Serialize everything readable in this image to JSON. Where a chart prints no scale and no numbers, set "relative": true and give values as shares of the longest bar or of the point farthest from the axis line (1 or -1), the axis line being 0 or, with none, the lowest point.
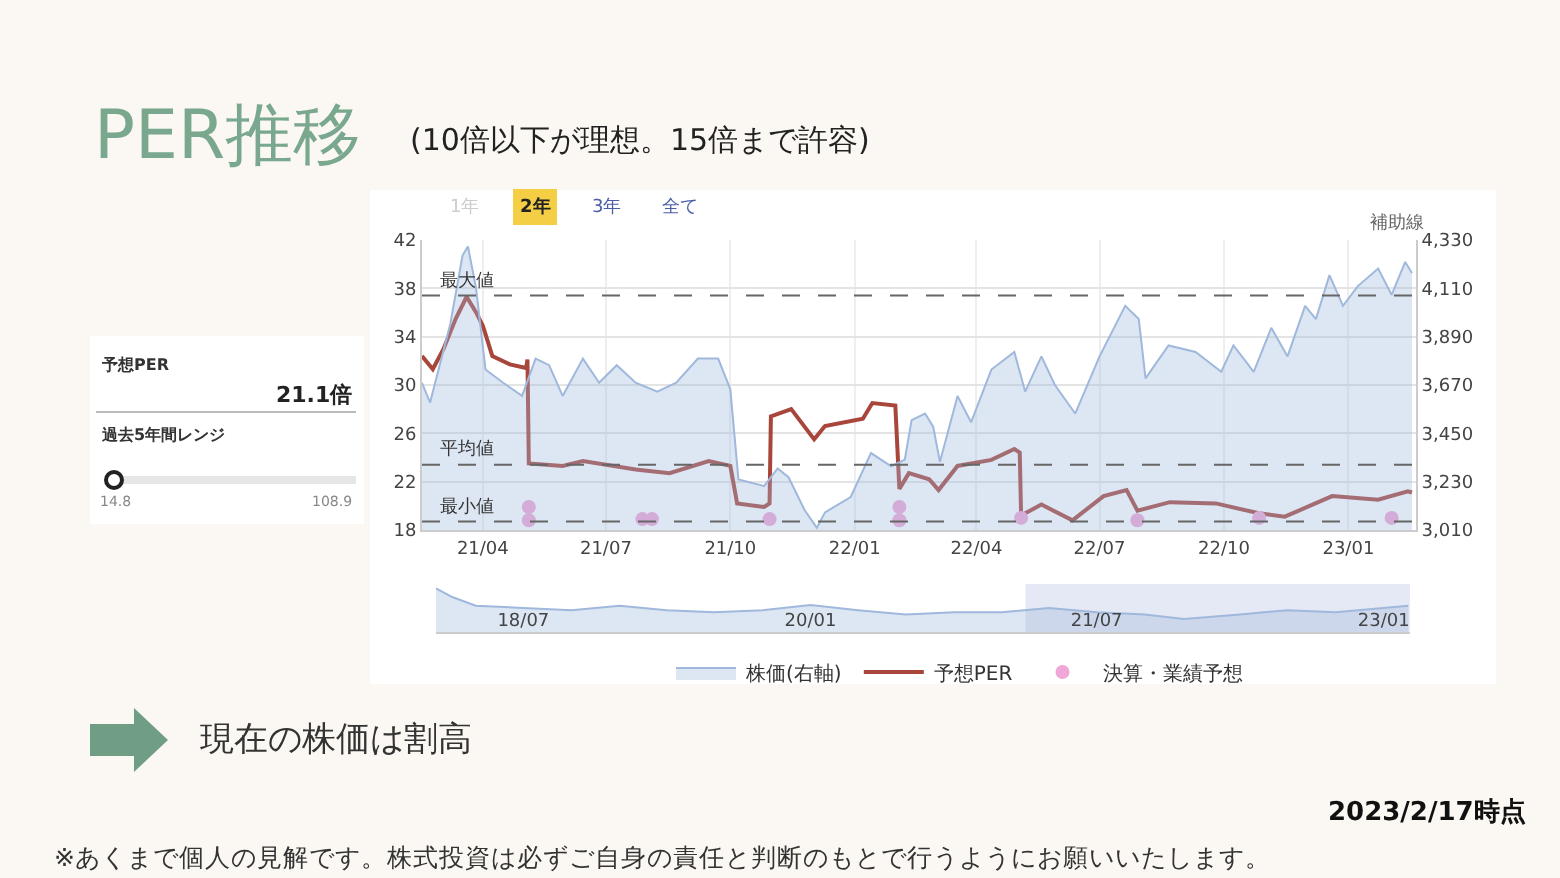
{
  "chart_data": [
    {
      "type": "line",
      "title": "PER推移",
      "subtitle": "(10倍以下が理想。15倍まで許容)",
      "series": [
        {
          "name": "株価(右軸)",
          "type": "area",
          "axis": "y2",
          "color": "#9fb8dc",
          "x": [
            "2021-02-15",
            "2021-02-21",
            "2021-02-26",
            "2021-03-08",
            "2021-03-17",
            "2021-03-21",
            "2021-03-27",
            "2021-04-03",
            "2021-04-16",
            "2021-04-30",
            "2021-05-10",
            "2021-05-20",
            "2021-05-30",
            "2021-06-14",
            "2021-06-26",
            "2021-07-09",
            "2021-07-23",
            "2021-08-08",
            "2021-08-22",
            "2021-09-07",
            "2021-09-22",
            "2021-10-01",
            "2021-10-07",
            "2021-10-26",
            "2021-11-05",
            "2021-11-13",
            "2021-11-25",
            "2021-12-04",
            "2021-12-10",
            "2021-12-29",
            "2022-01-13",
            "2022-01-28",
            "2022-02-07",
            "2022-02-12",
            "2022-02-22",
            "2022-02-28",
            "2022-03-05",
            "2022-03-18",
            "2022-03-28",
            "2022-04-12",
            "2022-04-29",
            "2022-05-07",
            "2022-05-19",
            "2022-05-29",
            "2022-06-13",
            "2022-07-01",
            "2022-07-20",
            "2022-07-30",
            "2022-08-04",
            "2022-08-21",
            "2022-09-10",
            "2022-09-29",
            "2022-10-08",
            "2022-10-23",
            "2022-11-05",
            "2022-11-17",
            "2022-11-30",
            "2022-12-08",
            "2022-12-18",
            "2022-12-28",
            "2023-01-08",
            "2023-01-23",
            "2023-02-02",
            "2023-02-12",
            "2023-02-17"
          ],
          "values": [
            3680,
            3590,
            3710,
            3950,
            4260,
            4300,
            4110,
            3740,
            3680,
            3620,
            3790,
            3760,
            3620,
            3790,
            3680,
            3760,
            3680,
            3640,
            3680,
            3790,
            3790,
            3650,
            3240,
            3210,
            3290,
            3250,
            3100,
            3020,
            3090,
            3160,
            3360,
            3300,
            3330,
            3510,
            3540,
            3480,
            3320,
            3620,
            3500,
            3740,
            3820,
            3640,
            3800,
            3670,
            3540,
            3800,
            4030,
            3970,
            3700,
            3850,
            3820,
            3730,
            3850,
            3730,
            3930,
            3800,
            4030,
            3970,
            4170,
            4030,
            4120,
            4200,
            4080,
            4230,
            4180
          ]
        },
        {
          "name": "予想PER",
          "type": "line",
          "color": "#a8463c",
          "x": [
            "2021-02-15",
            "2021-02-23",
            "2021-03-03",
            "2021-03-12",
            "2021-03-20",
            "2021-03-27",
            "2021-04-01",
            "2021-04-08",
            "2021-04-21",
            "2021-05-03",
            "2021-05-04",
            "2021-05-05",
            "2021-05-30",
            "2021-06-14",
            "2021-07-23",
            "2021-08-17",
            "2021-09-15",
            "2021-10-01",
            "2021-10-06",
            "2021-10-26",
            "2021-10-30",
            "2021-10-31",
            "2021-11-15",
            "2021-12-02",
            "2021-12-10",
            "2022-01-07",
            "2022-01-14",
            "2022-01-31",
            "2022-02-03",
            "2022-02-10",
            "2022-02-25",
            "2022-03-04",
            "2022-03-18",
            "2022-04-12",
            "2022-04-29",
            "2022-05-03",
            "2022-05-04",
            "2022-05-19",
            "2022-06-11",
            "2022-07-04",
            "2022-07-21",
            "2022-07-29",
            "2022-08-22",
            "2022-09-25",
            "2022-10-26",
            "2022-11-15",
            "2022-12-20",
            "2023-01-23",
            "2023-02-14",
            "2023-02-17"
          ],
          "values": [
            32.4,
            31.3,
            33.0,
            35.5,
            37.3,
            36.0,
            34.9,
            32.4,
            31.7,
            31.4,
            32.1,
            23.5,
            23.3,
            23.7,
            23.0,
            22.7,
            23.7,
            23.3,
            20.2,
            19.9,
            20.2,
            27.4,
            28.0,
            25.5,
            26.6,
            27.2,
            28.5,
            28.3,
            21.4,
            22.7,
            22.2,
            21.3,
            23.3,
            23.8,
            24.7,
            24.4,
            19.2,
            20.1,
            18.8,
            20.8,
            21.3,
            19.6,
            20.3,
            20.2,
            19.4,
            19.1,
            20.8,
            20.5,
            21.2,
            21.1
          ]
        },
        {
          "name": "決算・業績予想",
          "type": "scatter",
          "marker": "circle",
          "color": "#f0a6d6",
          "x": [
            "2021-05-05",
            "2021-05-05",
            "2021-07-28",
            "2021-08-04",
            "2021-10-30",
            "2022-02-03",
            "2022-02-03",
            "2022-05-04",
            "2022-07-29",
            "2022-10-27",
            "2023-02-02"
          ],
          "values": [
            19.9,
            18.8,
            18.9,
            18.9,
            18.9,
            19.9,
            18.8,
            19.0,
            18.8,
            19.0,
            19.0
          ]
        }
      ],
      "xlim": [
        "2021-02-15",
        "2023-02-20"
      ],
      "xticks": [
        {
          "value": "2021-04-01",
          "label": "21/04"
        },
        {
          "value": "2021-07-01",
          "label": "21/07"
        },
        {
          "value": "2021-10-01",
          "label": "21/10"
        },
        {
          "value": "2022-01-01",
          "label": "22/01"
        },
        {
          "value": "2022-04-01",
          "label": "22/04"
        },
        {
          "value": "2022-07-01",
          "label": "22/07"
        },
        {
          "value": "2022-10-01",
          "label": "22/10"
        },
        {
          "value": "2023-01-01",
          "label": "23/01"
        }
      ],
      "ylim": [
        18,
        42
      ],
      "yticks": [
        18,
        22,
        26,
        30,
        34,
        38,
        42
      ],
      "y2lim": [
        3010,
        4330
      ],
      "y2ticks": [
        {
          "value": 3010,
          "label": "3,010"
        },
        {
          "value": 3230,
          "label": "3,230"
        },
        {
          "value": 3450,
          "label": "3,450"
        },
        {
          "value": 3670,
          "label": "3,670"
        },
        {
          "value": 3890,
          "label": "3,890"
        },
        {
          "value": 4110,
          "label": "4,110"
        },
        {
          "value": 4330,
          "label": "4,330"
        }
      ],
      "ref_lines": [
        {
          "axis": "y",
          "value": 37.4,
          "label": "最大値",
          "color": "#666666",
          "line_style": "dashed"
        },
        {
          "axis": "y",
          "value": 23.4,
          "label": "平均値",
          "color": "#666666",
          "line_style": "dashed"
        },
        {
          "axis": "y",
          "value": 18.7,
          "label": "最小値",
          "color": "#666666",
          "line_style": "dashed"
        }
      ],
      "grid": true,
      "legend": "bottom",
      "line_style": "solid",
      "annotations": [
        "1年",
        "2年",
        "3年",
        "全て",
        "補助線",
        "予想PER",
        "21.1倍",
        "過去5年間レンジ",
        "14.8",
        "108.9",
        "現在の株価は割高",
        "2023/2/17時点",
        "※あくまで個人の見解です。株式投資は必ずご自身の責任と判断のもとで行うようにお願いいたします。"
      ]
    },
    {
      "type": "area",
      "relative": true,
      "color": "#9fb8dc",
      "tick_labels": "x",
      "x": [
        "2018-01-15",
        "2018-02-15",
        "2018-04-01",
        "2018-07-01",
        "2018-10-01",
        "2019-01-01",
        "2019-04-01",
        "2019-07-01",
        "2019-10-01",
        "2020-01-01",
        "2020-04-01",
        "2020-07-01",
        "2020-10-01",
        "2021-01-01",
        "2021-04-01",
        "2021-07-01",
        "2021-10-01",
        "2021-12-15",
        "2022-04-01",
        "2022-07-01",
        "2022-10-01",
        "2023-02-17"
      ],
      "values": [
        1.0,
        0.8,
        0.6,
        0.55,
        0.5,
        0.6,
        0.5,
        0.45,
        0.5,
        0.62,
        0.5,
        0.4,
        0.45,
        0.45,
        0.55,
        0.45,
        0.4,
        0.3,
        0.4,
        0.5,
        0.45,
        0.6
      ],
      "xlim": [
        "2018-01-15",
        "2023-02-20"
      ],
      "xticks": [
        {
          "value": "2018-07-01",
          "label": "18/07"
        },
        {
          "value": "2020-01-01",
          "label": "20/01"
        },
        {
          "value": "2021-07-01",
          "label": "21/07"
        },
        {
          "value": "2023-01-01",
          "label": "23/01"
        }
      ],
      "bands": [
        {
          "axis": "x",
          "from": "2021-02-15",
          "to": "2023-02-20",
          "color": "#d3daee"
        }
      ]
    }
  ]
}
